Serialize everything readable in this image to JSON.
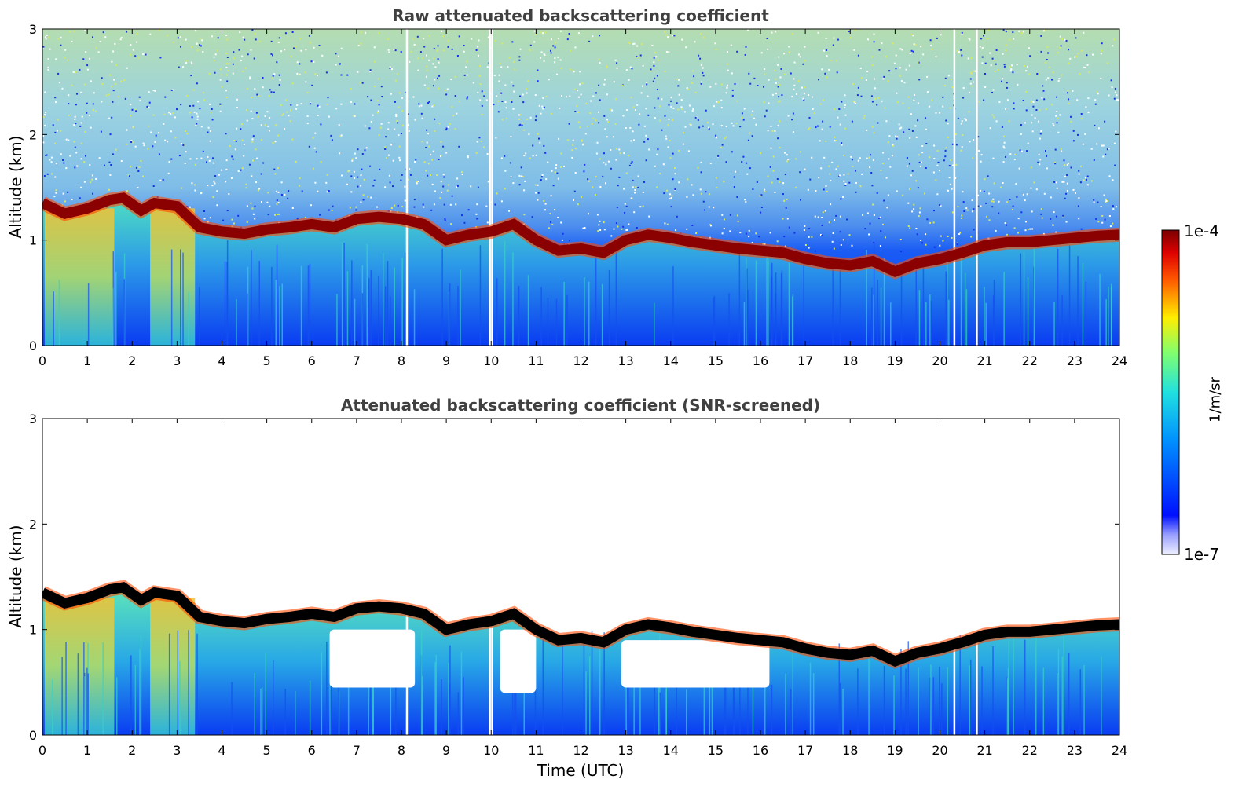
{
  "chart_data": [
    {
      "type": "heatmap",
      "title": "Raw attenuated backscattering coefficient",
      "xlabel": "",
      "ylabel": "Altitude (km)",
      "xlim": [
        0,
        24
      ],
      "ylim": [
        0,
        3
      ],
      "xticks": [
        "0",
        "1",
        "2",
        "3",
        "4",
        "5",
        "6",
        "7",
        "8",
        "9",
        "10",
        "11",
        "12",
        "13",
        "14",
        "15",
        "16",
        "17",
        "18",
        "19",
        "20",
        "21",
        "22",
        "23",
        "24"
      ],
      "yticks": [
        "0",
        "1",
        "2",
        "3"
      ],
      "boundary_layer_top_km": {
        "x": [
          0,
          0.5,
          1,
          1.5,
          1.8,
          2.2,
          2.5,
          3,
          3.5,
          4,
          4.5,
          5,
          5.5,
          6,
          6.5,
          7,
          7.5,
          8,
          8.5,
          9,
          9.5,
          10,
          10.5,
          11,
          11.5,
          12,
          12.5,
          13,
          13.5,
          14,
          14.5,
          15,
          15.5,
          16,
          16.5,
          17,
          17.5,
          18,
          18.5,
          19,
          19.5,
          20,
          20.5,
          21,
          21.5,
          22,
          22.5,
          23,
          23.5,
          24
        ],
        "y": [
          1.35,
          1.25,
          1.3,
          1.38,
          1.4,
          1.28,
          1.35,
          1.32,
          1.12,
          1.08,
          1.06,
          1.1,
          1.12,
          1.15,
          1.12,
          1.2,
          1.22,
          1.2,
          1.15,
          1.0,
          1.05,
          1.08,
          1.15,
          1.0,
          0.9,
          0.92,
          0.88,
          1.0,
          1.05,
          1.02,
          0.98,
          0.95,
          0.92,
          0.9,
          0.88,
          0.82,
          0.78,
          0.76,
          0.8,
          0.7,
          0.78,
          0.82,
          0.88,
          0.95,
          0.98,
          0.98,
          1.0,
          1.02,
          1.04,
          1.05
        ]
      }
    },
    {
      "type": "heatmap",
      "title": "Attenuated backscattering coefficient (SNR-screened)",
      "xlabel": "Time (UTC)",
      "ylabel": "Altitude (km)",
      "xlim": [
        0,
        24
      ],
      "ylim": [
        0,
        3
      ],
      "xticks": [
        "0",
        "1",
        "2",
        "3",
        "4",
        "5",
        "6",
        "7",
        "8",
        "9",
        "10",
        "11",
        "12",
        "13",
        "14",
        "15",
        "16",
        "17",
        "18",
        "19",
        "20",
        "21",
        "22",
        "23",
        "24"
      ],
      "yticks": [
        "0",
        "1",
        "2",
        "3"
      ],
      "masked_regions": [
        {
          "x": [
            6.4,
            8.3
          ],
          "y": [
            0.45,
            1.0
          ]
        },
        {
          "x": [
            10.2,
            11.0
          ],
          "y": [
            0.4,
            1.0
          ]
        },
        {
          "x": [
            12.9,
            16.2
          ],
          "y": [
            0.45,
            0.9
          ]
        }
      ]
    }
  ],
  "colorbar": {
    "max_label": "1e-4",
    "min_label": "1e-7",
    "unit": "1/m/sr",
    "scale": "log",
    "colormap": "jet"
  },
  "colors": {
    "title": "#404040",
    "layer_top": "#8b0000",
    "layer_top_screened": "#000000"
  }
}
